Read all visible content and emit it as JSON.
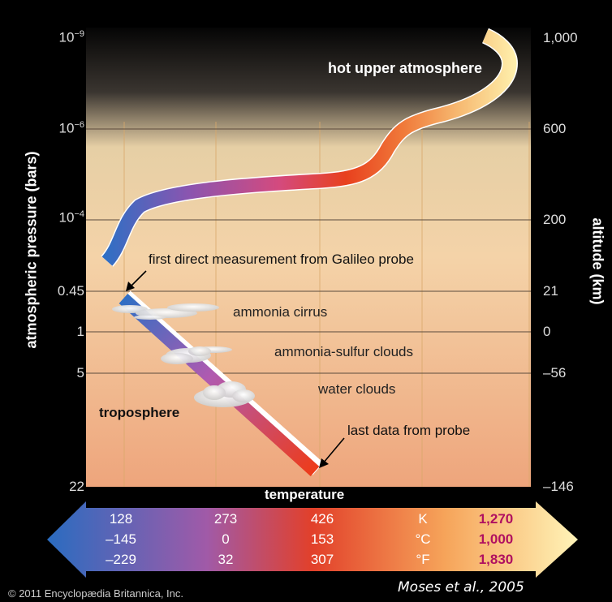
{
  "left_axis": {
    "title": "atmospheric pressure (bars)",
    "ticks": [
      {
        "base": "10",
        "exp": "−9"
      },
      {
        "base": "10",
        "exp": "−6"
      },
      {
        "base": "10",
        "exp": "−4"
      },
      {
        "base": "0.45",
        "exp": ""
      },
      {
        "base": "1",
        "exp": ""
      },
      {
        "base": "5",
        "exp": ""
      },
      {
        "base": "22",
        "exp": ""
      }
    ]
  },
  "right_axis": {
    "title": "altitude (km)",
    "ticks": [
      "1,000",
      "600",
      "200",
      "21",
      "0",
      "–56",
      "–146"
    ]
  },
  "labels": {
    "hot_upper": "hot upper atmosphere",
    "first_measure": "first direct measurement from Galileo probe",
    "ammonia_cirrus": "ammonia cirrus",
    "ammonia_sulfur": "ammonia-sulfur clouds",
    "water_clouds": "water clouds",
    "troposphere": "troposphere",
    "last_data": "last data from probe"
  },
  "temperature_bar": {
    "title": "temperature",
    "units": [
      "K",
      "°C",
      "°F"
    ],
    "columns": [
      {
        "values": [
          "128",
          "–145",
          "–229"
        ]
      },
      {
        "values": [
          "273",
          "0",
          "32"
        ]
      },
      {
        "values": [
          "426",
          "153",
          "307"
        ]
      },
      {
        "values": [
          "1,270",
          "1,000",
          "1,830"
        ]
      }
    ]
  },
  "footer": {
    "copyright": "© 2011 Encyclopædia Britannica, Inc.",
    "citation": "Moses et al., 2005"
  },
  "colors": {
    "cold": "#2f6fc4",
    "purple": "#8a55b0",
    "magenta": "#c84a8a",
    "red": "#e8401e",
    "orange": "#f2904a",
    "hot": "#fff0a0",
    "bar_text_hot": "#b01060"
  }
}
